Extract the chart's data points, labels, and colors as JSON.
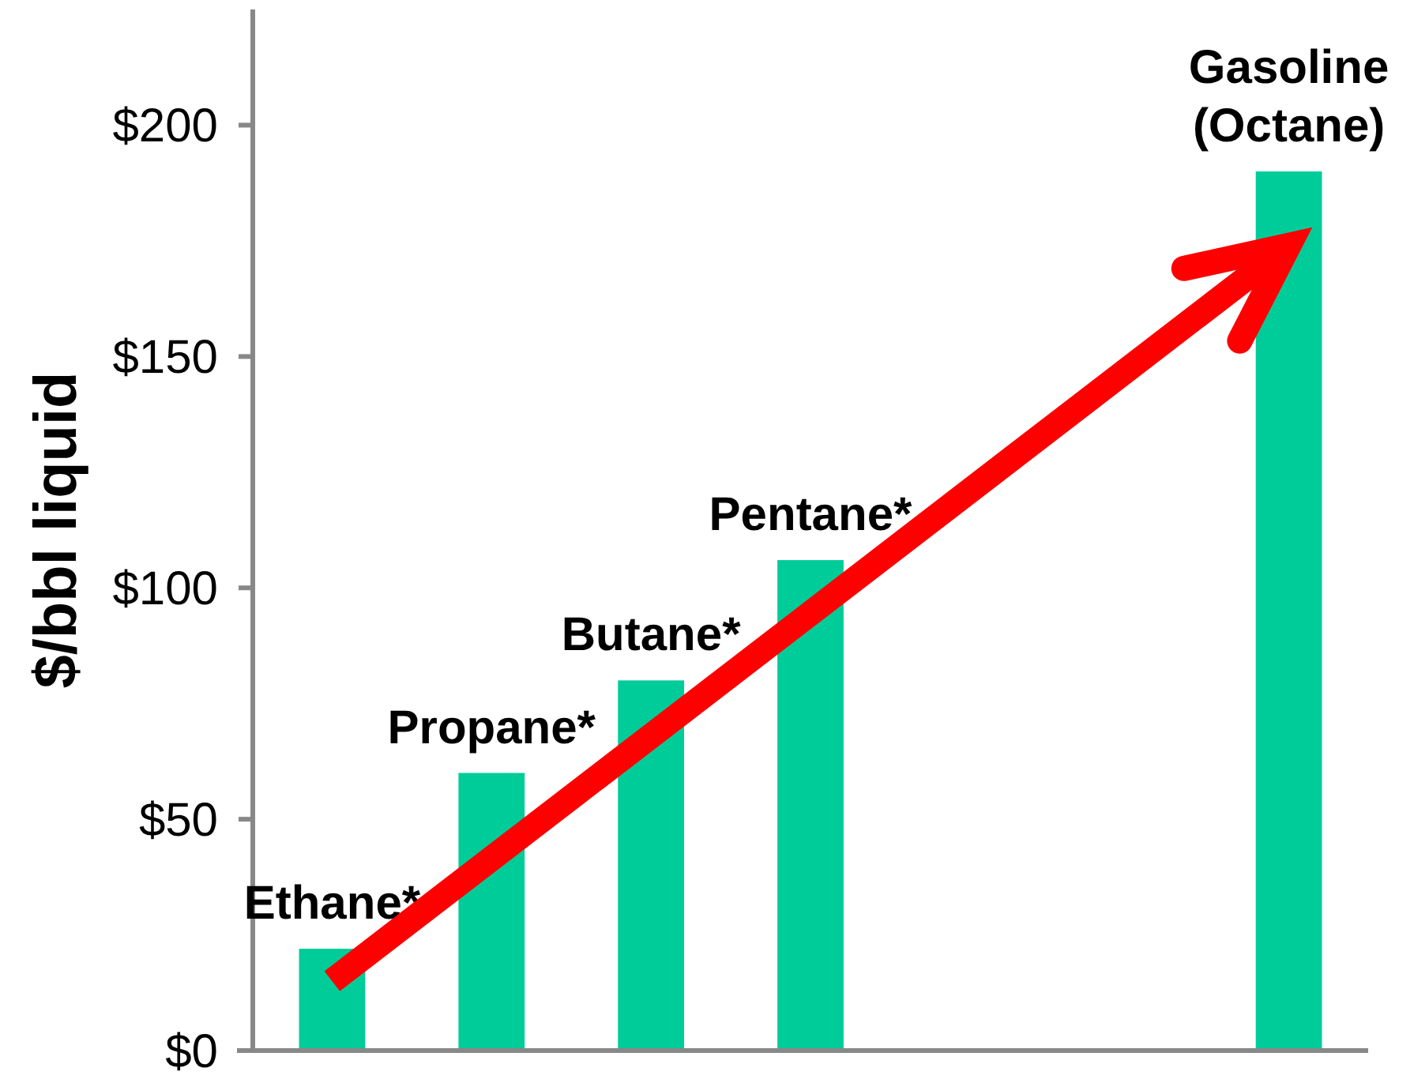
{
  "chart_data": {
    "type": "bar",
    "ylabel": "$/bbl liquid",
    "categories": [
      "Ethane*",
      "Propane*",
      "Butane*",
      "Pentane*",
      null,
      null,
      "Gasoline (Octane)"
    ],
    "series": [
      {
        "color": "#00cc99",
        "values": [
          22,
          60,
          80,
          106,
          null,
          null,
          190
        ]
      },
      {
        "type": "line",
        "color": "#ff0000",
        "x": [
          "Ethane*",
          "Gasoline (Octane)"
        ],
        "values": [
          15,
          174
        ]
      }
    ],
    "ylim": [
      0,
      225
    ],
    "yticks": [
      {
        "value": 0,
        "label": "$0"
      },
      {
        "value": 50,
        "label": "$50"
      },
      {
        "value": 100,
        "label": "$100"
      },
      {
        "value": 150,
        "label": "$150"
      },
      {
        "value": 200,
        "label": "$200"
      }
    ]
  }
}
